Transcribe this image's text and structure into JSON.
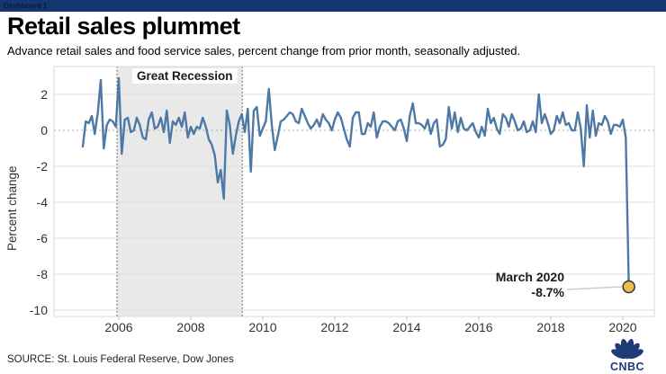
{
  "window": {
    "tab_label": "Dashboard 1"
  },
  "header": {
    "title": "Retail sales plummet",
    "subtitle": "Advance retail sales and food service sales, percent change from prior month, seasonally adjusted."
  },
  "annotation": {
    "line1": "March 2020",
    "line2": "-8.7%"
  },
  "footer": {
    "source": "SOURCE: St. Louis Federal Reserve, Dow Jones",
    "logo_text": "CNBC"
  },
  "colors": {
    "topbar": "#15376f",
    "line": "#4e79a7",
    "marker_fill": "#e8bd4a",
    "marker_stroke": "#333333",
    "band_fill": "#e9e9e9",
    "grid": "#dedede",
    "plot_border": "#d8d8d8",
    "leader": "#cccccc",
    "axis_text": "#333333",
    "logo_navy": "#1e3c78"
  },
  "chart_data": {
    "type": "line",
    "title": "Retail sales plummet",
    "subtitle": "Advance retail sales and food service sales, percent change from prior month, seasonally adjusted.",
    "xlabel": "",
    "ylabel": "Percent change",
    "frequency": "monthly",
    "x_start_year": 2005,
    "x_start_month": 1,
    "x_end_label": "March 2020",
    "xticks": [
      2006,
      2008,
      2010,
      2012,
      2014,
      2016,
      2018,
      2020
    ],
    "yticks": [
      2,
      0,
      -2,
      -4,
      -6,
      -8,
      -10
    ],
    "xlim": [
      2004.2,
      2020.875
    ],
    "ylim": [
      -10.35,
      3.55
    ],
    "grid": "horizontal",
    "zero_line": "dotted",
    "legend": "none",
    "recession_band": {
      "label": "Great Recession",
      "from": 2005.95,
      "to": 2009.43
    },
    "endpoint_annotation": {
      "date": "March 2020",
      "text": "-8.7%",
      "value": -8.7
    },
    "series": [
      {
        "name": "Percent change from prior month",
        "values": [
          -0.9,
          0.5,
          0.4,
          0.8,
          -0.2,
          1.0,
          2.8,
          -1.0,
          0.3,
          0.6,
          0.5,
          0.2,
          2.9,
          -1.3,
          0.6,
          0.7,
          -0.1,
          0.0,
          0.7,
          0.3,
          -0.4,
          -0.5,
          0.6,
          1.0,
          0.1,
          0.2,
          0.7,
          -0.1,
          1.1,
          -0.7,
          0.5,
          0.3,
          0.7,
          0.2,
          1.0,
          -0.4,
          0.2,
          -0.2,
          0.2,
          0.1,
          0.7,
          0.2,
          -0.5,
          -0.8,
          -1.4,
          -2.9,
          -2.2,
          -3.8,
          1.1,
          0.3,
          -1.3,
          -0.3,
          0.5,
          0.9,
          -0.1,
          1.2,
          -2.3,
          1.1,
          1.3,
          -0.3,
          0.1,
          0.5,
          2.3,
          0.3,
          -1.1,
          -0.3,
          0.5,
          0.6,
          0.8,
          1.0,
          0.9,
          0.5,
          0.4,
          1.2,
          0.8,
          0.4,
          0.1,
          0.3,
          0.6,
          0.2,
          0.9,
          0.6,
          0.4,
          0.0,
          0.6,
          1.0,
          0.7,
          0.1,
          -0.5,
          -0.9,
          0.7,
          1.0,
          1.0,
          -0.2,
          -0.2,
          0.4,
          0.2,
          1.0,
          -0.4,
          0.2,
          0.5,
          0.5,
          0.4,
          0.2,
          0.0,
          0.5,
          0.6,
          0.1,
          -0.6,
          0.8,
          1.5,
          0.4,
          0.4,
          0.3,
          0.1,
          0.6,
          -0.2,
          0.4,
          0.6,
          -0.9,
          -0.8,
          -0.5,
          1.3,
          0.1,
          1.0,
          -0.1,
          0.7,
          0.1,
          0.0,
          0.2,
          0.4,
          -0.1,
          -0.4,
          0.2,
          -0.3,
          1.2,
          0.4,
          0.7,
          0.1,
          -0.2,
          0.9,
          0.7,
          0.2,
          0.9,
          0.5,
          0.0,
          0.1,
          0.5,
          -0.1,
          0.0,
          0.5,
          -0.1,
          2.0,
          0.4,
          0.9,
          0.4,
          -0.2,
          0.0,
          0.8,
          0.4,
          1.0,
          0.3,
          0.4,
          0.0,
          0.0,
          1.0,
          0.1,
          -2.0,
          1.4,
          -0.4,
          1.1,
          -0.3,
          0.4,
          0.3,
          0.8,
          0.5,
          -0.2,
          0.3,
          0.3,
          0.2,
          0.6,
          -0.4,
          -8.7
        ]
      }
    ]
  }
}
